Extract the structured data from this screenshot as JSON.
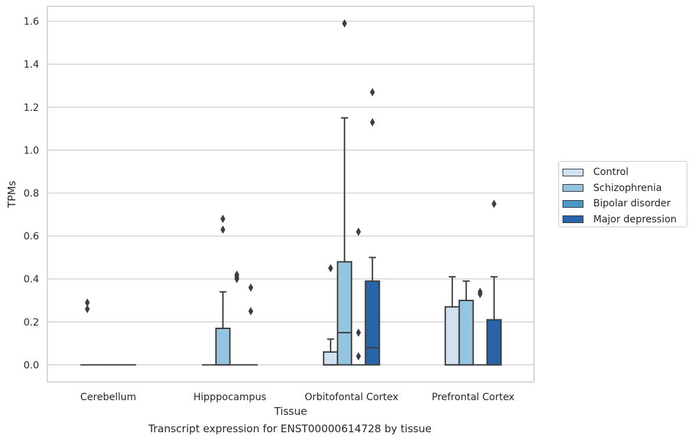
{
  "caption": "Transcript expression for ENST00000614728 by tissue",
  "legend": {
    "items": [
      {
        "label": "Control",
        "color": "#d0e1f2"
      },
      {
        "label": "Schizophrenia",
        "color": "#94c4df"
      },
      {
        "label": "Bipolar disorder",
        "color": "#4a98c9"
      },
      {
        "label": "Major depression",
        "color": "#2764a8"
      }
    ]
  },
  "chart_data": {
    "type": "box",
    "xlabel": "Tissue",
    "ylabel": "TPMs",
    "ylim": [
      -0.08,
      1.67
    ],
    "yticks": [
      0.0,
      0.2,
      0.4,
      0.6,
      0.8,
      1.0,
      1.2,
      1.4,
      1.6
    ],
    "ytick_labels": [
      "0.0",
      "0.2",
      "0.4",
      "0.6",
      "0.8",
      "1.0",
      "1.2",
      "1.4",
      "1.6"
    ],
    "grid": "horizontal",
    "legend_position": "right",
    "categories": [
      "Cerebellum",
      "Hipppocampus",
      "Orbitofontal Cortex",
      "Prefrontal Cortex"
    ],
    "series": [
      {
        "name": "Control",
        "color": "#d0e1f2",
        "boxes": [
          {
            "category": "Cerebellum",
            "q1": 0,
            "median": 0,
            "q3": 0,
            "whisker_low": 0,
            "whisker_high": 0,
            "outliers": [
              0.26,
              0.29
            ]
          },
          {
            "category": "Hipppocampus",
            "q1": 0,
            "median": 0,
            "q3": 0,
            "whisker_low": 0,
            "whisker_high": 0,
            "outliers": []
          },
          {
            "category": "Orbitofontal Cortex",
            "q1": 0,
            "median": 0,
            "q3": 0.06,
            "whisker_low": 0,
            "whisker_high": 0.12,
            "outliers": [
              0.45
            ]
          },
          {
            "category": "Prefrontal Cortex",
            "q1": 0,
            "median": 0,
            "q3": 0.27,
            "whisker_low": 0,
            "whisker_high": 0.41,
            "outliers": []
          }
        ]
      },
      {
        "name": "Schizophrenia",
        "color": "#94c4df",
        "boxes": [
          {
            "category": "Cerebellum",
            "q1": 0,
            "median": 0,
            "q3": 0,
            "whisker_low": 0,
            "whisker_high": 0,
            "outliers": []
          },
          {
            "category": "Hipppocampus",
            "q1": 0,
            "median": 0,
            "q3": 0.17,
            "whisker_low": 0,
            "whisker_high": 0.34,
            "outliers": [
              0.68,
              0.63
            ]
          },
          {
            "category": "Orbitofontal Cortex",
            "q1": 0,
            "median": 0.15,
            "q3": 0.48,
            "whisker_low": 0,
            "whisker_high": 1.15,
            "outliers": [
              1.59
            ]
          },
          {
            "category": "Prefrontal Cortex",
            "q1": 0,
            "median": 0,
            "q3": 0.3,
            "whisker_low": 0,
            "whisker_high": 0.39,
            "outliers": []
          }
        ]
      },
      {
        "name": "Bipolar disorder",
        "color": "#4a98c9",
        "boxes": [
          {
            "category": "Cerebellum",
            "q1": 0,
            "median": 0,
            "q3": 0,
            "whisker_low": 0,
            "whisker_high": 0,
            "outliers": []
          },
          {
            "category": "Hipppocampus",
            "q1": 0,
            "median": 0,
            "q3": 0,
            "whisker_low": 0,
            "whisker_high": 0,
            "outliers": [
              0.4,
              0.41,
              0.42
            ]
          },
          {
            "category": "Orbitofontal Cortex",
            "q1": 0,
            "median": 0,
            "q3": 0,
            "whisker_low": 0,
            "whisker_high": 0,
            "outliers": [
              0.62,
              0.15,
              0.04
            ]
          },
          {
            "category": "Prefrontal Cortex",
            "q1": 0,
            "median": 0,
            "q3": 0,
            "whisker_low": 0,
            "whisker_high": 0,
            "outliers": [
              0.33,
              0.34
            ]
          }
        ]
      },
      {
        "name": "Major depression",
        "color": "#2764a8",
        "boxes": [
          {
            "category": "Cerebellum",
            "q1": 0,
            "median": 0,
            "q3": 0,
            "whisker_low": 0,
            "whisker_high": 0,
            "outliers": []
          },
          {
            "category": "Hipppocampus",
            "q1": 0,
            "median": 0,
            "q3": 0,
            "whisker_low": 0,
            "whisker_high": 0,
            "outliers": [
              0.36,
              0.25
            ]
          },
          {
            "category": "Orbitofontal Cortex",
            "q1": 0,
            "median": 0.08,
            "q3": 0.39,
            "whisker_low": 0,
            "whisker_high": 0.5,
            "outliers": [
              1.27,
              1.13
            ]
          },
          {
            "category": "Prefrontal Cortex",
            "q1": 0,
            "median": 0,
            "q3": 0.21,
            "whisker_low": 0,
            "whisker_high": 0.41,
            "outliers": [
              0.75
            ]
          }
        ]
      }
    ]
  }
}
